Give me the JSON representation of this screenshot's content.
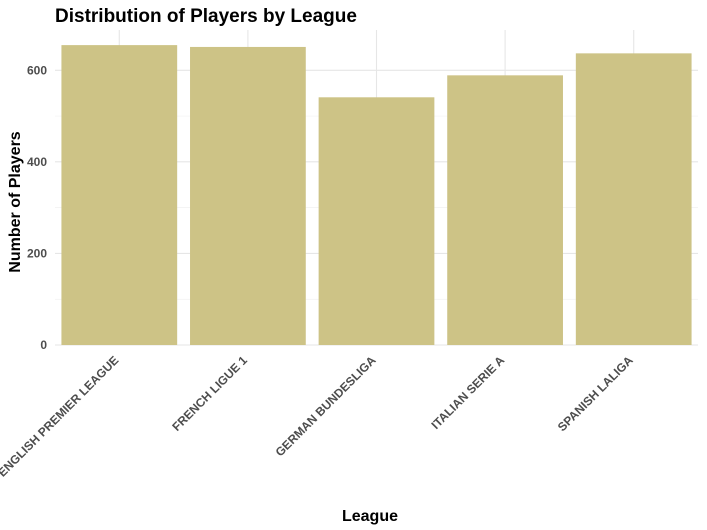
{
  "chart_data": {
    "type": "bar",
    "title": "Distribution of Players by League",
    "xlabel": "League",
    "ylabel": "Number of Players",
    "categories": [
      "ENGLISH PREMIER LEAGUE",
      "FRENCH LIGUE 1",
      "GERMAN BUNDESLIGA",
      "ITALIAN SERIE A",
      "SPANISH LALIGA"
    ],
    "values": [
      655,
      651,
      541,
      589,
      637
    ],
    "ylim": [
      0,
      688
    ],
    "yticks": [
      0,
      200,
      400,
      600
    ],
    "ytick_labels": [
      "0",
      "200",
      "400",
      "600"
    ],
    "grid": true,
    "legend": "none",
    "bar_color": "#cdc386"
  }
}
